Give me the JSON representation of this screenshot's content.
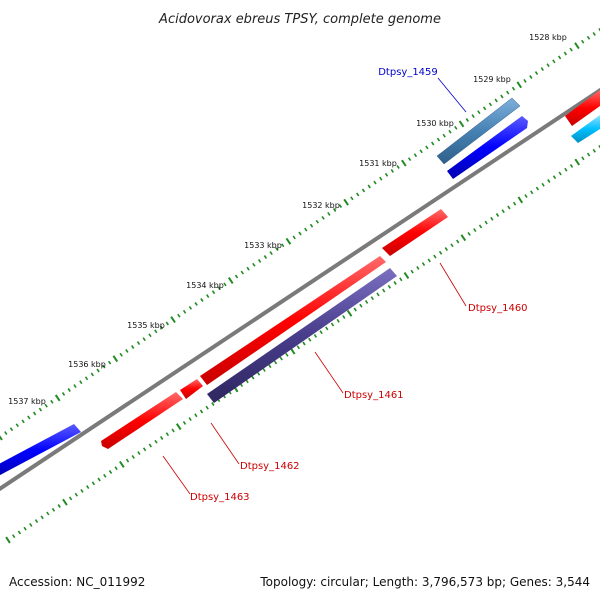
{
  "title": "Acidovorax ebreus TPSY, complete genome",
  "footer": {
    "accession": "Accession: NC_011992",
    "summary": "Topology: circular; Length: 3,796,573 bp; Genes: 3,544"
  },
  "tick_labels": [
    "1528 kbp",
    "1529 kbp",
    "1530 kbp",
    "1531 kbp",
    "1532 kbp",
    "1533 kbp",
    "1534 kbp",
    "1535 kbp",
    "1536 kbp",
    "1537 kbp"
  ],
  "genes": [
    {
      "id": "Dtpsy_1459",
      "label": "Dtpsy_1459",
      "color": "#4682b4",
      "label_color": "#0000cc"
    },
    {
      "id": "Dtpsy_1460",
      "label": "Dtpsy_1460",
      "color": "#ff0000",
      "label_color": "#cc0000"
    },
    {
      "id": "Dtpsy_1461",
      "label": "Dtpsy_1461",
      "color": "#483d8b",
      "label_color": "#cc0000"
    },
    {
      "id": "Dtpsy_1462",
      "label": "Dtpsy_1462",
      "color": "#ff0000",
      "label_color": "#cc0000"
    },
    {
      "id": "Dtpsy_1463",
      "label": "Dtpsy_1463",
      "color": "#ff0000",
      "label_color": "#cc0000"
    }
  ],
  "colors": {
    "backbone": "#808080",
    "tick": "#228b22",
    "forward_gene": "#0000ff",
    "reverse_gene": "#ff0000",
    "cyan_gene": "#00bfff"
  }
}
